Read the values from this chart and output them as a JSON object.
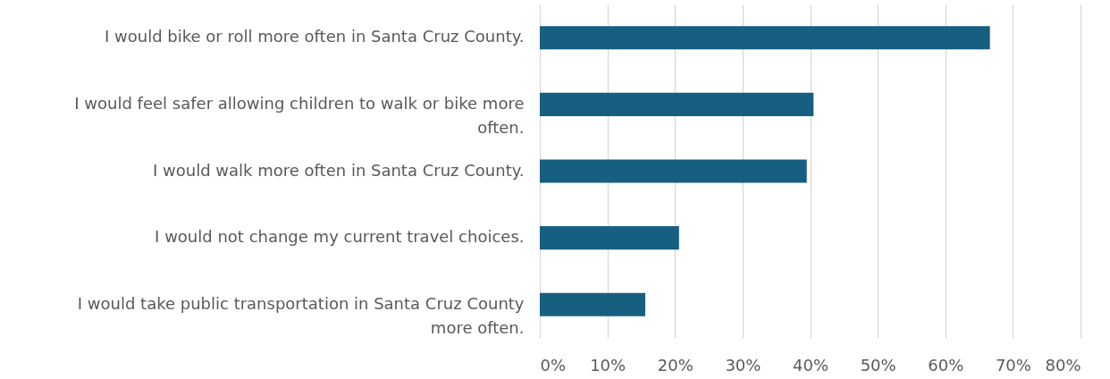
{
  "chart_data": {
    "type": "bar",
    "orientation": "horizontal",
    "categories": [
      "I would bike or roll more often in Santa Cruz County.",
      "I would feel safer allowing children to walk or bike more often.",
      "I would walk more often in Santa Cruz County.",
      "I would not change my current travel choices.",
      "I would take public transportation in Santa Cruz County more often."
    ],
    "values": [
      66.6,
      40.5,
      39.5,
      20.6,
      15.6
    ],
    "color": "#175f81",
    "xlim": [
      0,
      80
    ],
    "xticks": [
      {
        "value": 0,
        "label": "0%"
      },
      {
        "value": 10,
        "label": "10%"
      },
      {
        "value": 20,
        "label": "20%"
      },
      {
        "value": 30,
        "label": "30%"
      },
      {
        "value": 40,
        "label": "40%"
      },
      {
        "value": 50,
        "label": "50%"
      },
      {
        "value": 60,
        "label": "60%"
      },
      {
        "value": 70,
        "label": "70%"
      },
      {
        "value": 80,
        "label": "80%"
      }
    ],
    "grid": "x"
  }
}
